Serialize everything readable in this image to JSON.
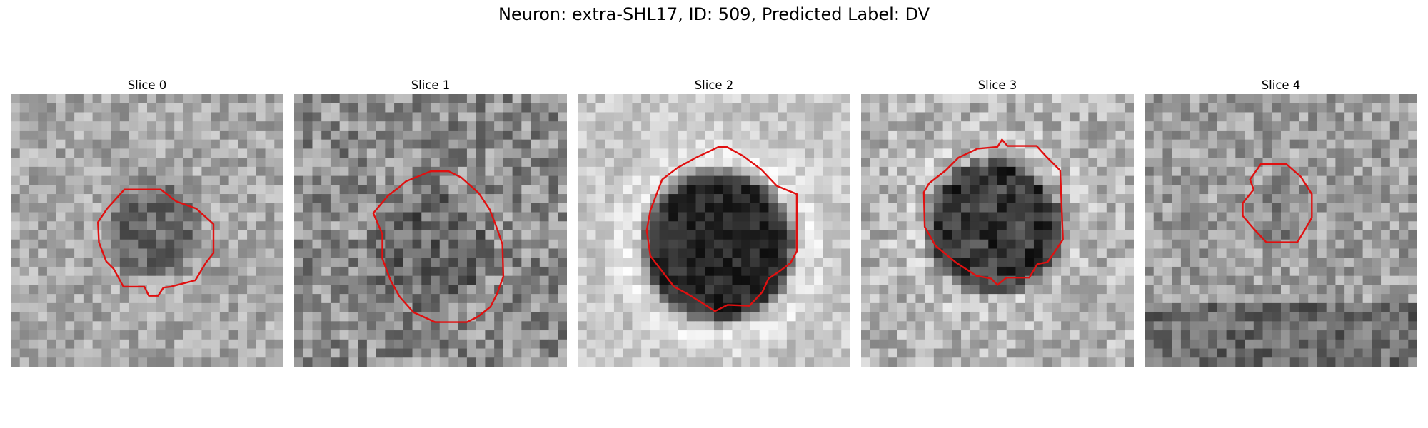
{
  "figure": {
    "title": "Neuron: extra-SHL17, ID: 509, Predicted Label: DV"
  },
  "panels": [
    {
      "title": "Slice 0"
    },
    {
      "title": "Slice 1"
    },
    {
      "title": "Slice 2"
    },
    {
      "title": "Slice 3"
    },
    {
      "title": "Slice 4"
    }
  ],
  "colors": {
    "contour": "#e01010",
    "background": "#ffffff"
  }
}
